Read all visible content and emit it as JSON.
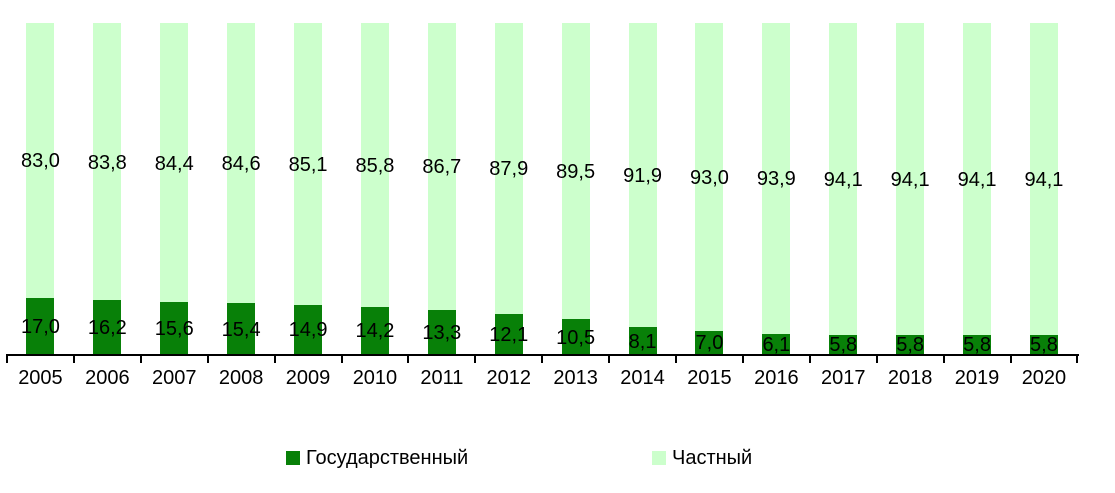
{
  "chart_data": {
    "type": "bar",
    "subtype": "stacked-100-percent-column",
    "title": "",
    "xlabel": "",
    "ylabel": "",
    "ylim": [
      0,
      100
    ],
    "grid": false,
    "legend_position": "bottom",
    "decimal_separator": ",",
    "categories": [
      "2005",
      "2006",
      "2007",
      "2008",
      "2009",
      "2010",
      "2011",
      "2012",
      "2013",
      "2014",
      "2015",
      "2016",
      "2017",
      "2018",
      "2019",
      "2020"
    ],
    "series": [
      {
        "name": "Государственный",
        "color": "#088008",
        "values": [
          17.0,
          16.2,
          15.6,
          15.4,
          14.9,
          14.2,
          13.3,
          12.1,
          10.5,
          8.1,
          7.0,
          6.1,
          5.8,
          5.8,
          5.8,
          5.8
        ],
        "labels": [
          "17,0",
          "16,2",
          "15,6",
          "15,4",
          "14,9",
          "14,2",
          "13,3",
          "12,1",
          "10,5",
          "8,1",
          "7,0",
          "6,1",
          "5,8",
          "5,8",
          "5,8",
          "5,8"
        ]
      },
      {
        "name": "Частный",
        "color": "#ccffcc",
        "values": [
          83.0,
          83.8,
          84.4,
          84.6,
          85.1,
          85.8,
          86.7,
          87.9,
          89.5,
          91.9,
          93.0,
          93.9,
          94.1,
          94.1,
          94.1,
          94.1
        ],
        "labels": [
          "83,0",
          "83,8",
          "84,4",
          "84,6",
          "85,1",
          "85,8",
          "86,7",
          "87,9",
          "89,5",
          "91,9",
          "93,0",
          "93,9",
          "94,1",
          "94,1",
          "94,1",
          "94,1"
        ]
      }
    ]
  }
}
